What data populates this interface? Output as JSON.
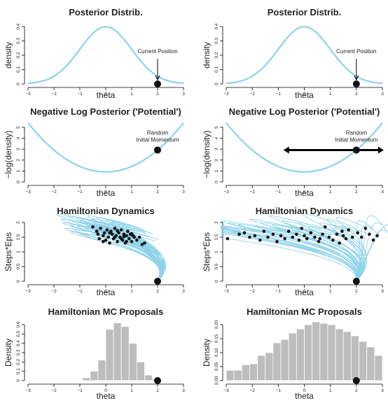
{
  "figure": {
    "colors": {
      "curve": "#8dd3ea",
      "bar": "#bdbdbd",
      "point": "#111111",
      "axis": "#000000"
    }
  },
  "chart_data": [
    {
      "type": "line",
      "panel": "posterior-left",
      "title": "Posterior Distrib.",
      "xlabel": "theta",
      "ylabel": "density",
      "xlim": [
        -3,
        3
      ],
      "ylim": [
        0,
        0.4
      ],
      "xticks": [
        -3,
        -2,
        -1,
        0,
        1,
        2,
        3
      ],
      "yticks": [
        0,
        0.1,
        0.2,
        0.3,
        0.4
      ],
      "curve": "normal(0,1) density",
      "current_position": 2,
      "annotation": "Current Position"
    },
    {
      "type": "line",
      "panel": "posterior-right",
      "title": "Posterior Distrib.",
      "xlabel": "theta",
      "ylabel": "density",
      "xlim": [
        -3,
        3
      ],
      "ylim": [
        0,
        0.4
      ],
      "xticks": [
        -3,
        -2,
        -1,
        0,
        1,
        2,
        3
      ],
      "yticks": [
        0,
        0.1,
        0.2,
        0.3,
        0.4
      ],
      "curve": "normal(0,1) density",
      "current_position": 2,
      "annotation": "Current Position"
    },
    {
      "type": "line",
      "panel": "potential-left",
      "title": "Negative Log Posterior ('Potential')",
      "xlabel": "theta",
      "ylabel": "−log(density)",
      "xlim": [
        -3,
        3
      ],
      "ylim": [
        0,
        5
      ],
      "xticks": [
        -3,
        -2,
        -1,
        0,
        1,
        2,
        3
      ],
      "yticks": [
        0,
        1,
        2,
        3,
        4,
        5
      ],
      "curve": "0.919 + theta^2/2",
      "current_position": 2,
      "annotation": [
        "Random",
        "Initial Momentum"
      ],
      "momentum_range": [
        1.85,
        2.15
      ]
    },
    {
      "type": "line",
      "panel": "potential-right",
      "title": "Negative Log Posterior ('Potential')",
      "xlabel": "theta",
      "ylabel": "−log(density)",
      "xlim": [
        -3,
        3
      ],
      "ylim": [
        0,
        5
      ],
      "xticks": [
        -3,
        -2,
        -1,
        0,
        1,
        2,
        3
      ],
      "yticks": [
        0,
        1,
        2,
        3,
        4,
        5
      ],
      "curve": "0.919 + theta^2/2",
      "current_position": 2,
      "annotation": [
        "Random",
        "Initial Momentum"
      ],
      "momentum_range": [
        -0.8,
        3.05
      ]
    },
    {
      "type": "scatter",
      "panel": "dynamics-left",
      "title": "Hamiltonian Dynamics",
      "xlabel": "theta",
      "ylabel": "Steps*Eps",
      "xlim": [
        -3,
        3
      ],
      "ylim": [
        0,
        2
      ],
      "xticks": [
        -3,
        -2,
        -1,
        0,
        1,
        2,
        3
      ],
      "yticks": [
        0,
        0.5,
        1,
        1.5,
        2
      ],
      "start": 2,
      "endpoints": [
        [
          -0.5,
          1.85
        ],
        [
          -0.35,
          1.7
        ],
        [
          -0.3,
          1.6
        ],
        [
          -0.25,
          1.45
        ],
        [
          -0.2,
          1.8
        ],
        [
          -0.1,
          1.55
        ],
        [
          -0.05,
          1.65
        ],
        [
          0,
          1.4
        ],
        [
          0.05,
          1.75
        ],
        [
          0.1,
          1.5
        ],
        [
          0.15,
          1.3
        ],
        [
          0.2,
          1.7
        ],
        [
          0.25,
          1.6
        ],
        [
          0.3,
          1.45
        ],
        [
          0.35,
          1.8
        ],
        [
          0.4,
          1.55
        ],
        [
          0.45,
          1.35
        ],
        [
          0.5,
          1.65
        ],
        [
          0.55,
          1.5
        ],
        [
          0.6,
          1.75
        ],
        [
          0.65,
          1.4
        ],
        [
          0.7,
          1.6
        ],
        [
          0.75,
          1.3
        ],
        [
          0.8,
          1.55
        ],
        [
          0.85,
          1.7
        ],
        [
          0.9,
          1.45
        ],
        [
          0.95,
          1.6
        ],
        [
          1.0,
          1.35
        ],
        [
          1.05,
          1.55
        ],
        [
          1.1,
          1.5
        ],
        [
          1.2,
          1.4
        ],
        [
          1.3,
          1.5
        ],
        [
          1.4,
          1.25
        ],
        [
          1.5,
          1.3
        ],
        [
          0.15,
          1.65
        ],
        [
          0.35,
          1.5
        ],
        [
          0.6,
          1.45
        ],
        [
          0.8,
          1.35
        ],
        [
          -0.1,
          1.35
        ],
        [
          0.45,
          1.72
        ],
        [
          0.7,
          1.52
        ],
        [
          1.0,
          1.62
        ]
      ]
    },
    {
      "type": "scatter",
      "panel": "dynamics-right",
      "title": "Hamiltonian Dynamics",
      "xlabel": "theta",
      "ylabel": "Steps*Eps",
      "xlim": [
        -3,
        3
      ],
      "ylim": [
        0,
        2
      ],
      "xticks": [
        -3,
        -2,
        -1,
        0,
        1,
        2,
        3
      ],
      "yticks": [
        0,
        0.5,
        1,
        1.5,
        2
      ],
      "start": 2,
      "endpoints": [
        [
          -2.95,
          1.45
        ],
        [
          -2.5,
          1.6
        ],
        [
          -2.3,
          1.65
        ],
        [
          -2.1,
          1.5
        ],
        [
          -1.9,
          1.55
        ],
        [
          -1.7,
          1.4
        ],
        [
          -1.55,
          1.7
        ],
        [
          -1.4,
          1.5
        ],
        [
          -1.2,
          1.6
        ],
        [
          -1.05,
          1.35
        ],
        [
          -0.9,
          1.55
        ],
        [
          -0.75,
          1.45
        ],
        [
          -0.6,
          1.7
        ],
        [
          -0.45,
          1.5
        ],
        [
          -0.3,
          1.6
        ],
        [
          -0.2,
          1.4
        ],
        [
          -0.1,
          1.8
        ],
        [
          0,
          1.55
        ],
        [
          0.1,
          1.45
        ],
        [
          0.25,
          1.65
        ],
        [
          0.4,
          1.5
        ],
        [
          0.55,
          1.35
        ],
        [
          0.7,
          1.6
        ],
        [
          0.8,
          1.85
        ],
        [
          0.95,
          1.5
        ],
        [
          1.1,
          1.4
        ],
        [
          1.25,
          1.6
        ],
        [
          1.35,
          1.3
        ],
        [
          1.5,
          1.55
        ],
        [
          1.6,
          1.45
        ],
        [
          1.7,
          1.75
        ],
        [
          1.85,
          1.5
        ],
        [
          2.05,
          1.65
        ],
        [
          2.2,
          1.5
        ],
        [
          2.35,
          1.8
        ],
        [
          2.5,
          1.6
        ],
        [
          2.65,
          1.4
        ],
        [
          2.8,
          1.55
        ],
        [
          1.45,
          1.7
        ],
        [
          0.6,
          1.45
        ]
      ]
    },
    {
      "type": "bar",
      "panel": "proposals-left",
      "title": "Hamiltonian MC Proposals",
      "xlabel": "theta",
      "ylabel": "Density",
      "xlim": [
        -3,
        3
      ],
      "ylim": [
        0,
        0.6
      ],
      "xticks": [
        -3,
        -2,
        -1,
        0,
        1,
        2,
        3
      ],
      "yticks": [
        0,
        0.1,
        0.2,
        0.3,
        0.4,
        0.5,
        0.6
      ],
      "bin_edges": [
        -1.2,
        -0.9,
        -0.6,
        -0.3,
        0,
        0.3,
        0.6,
        0.9,
        1.2,
        1.5,
        1.8,
        2.1
      ],
      "values": [
        0.005,
        0.03,
        0.1,
        0.22,
        0.55,
        0.62,
        0.58,
        0.4,
        0.2,
        0.06,
        0.02
      ],
      "current_position": 2
    },
    {
      "type": "bar",
      "panel": "proposals-right",
      "title": "Hamiltonian MC Proposals",
      "xlabel": "theta",
      "ylabel": "Density",
      "xlim": [
        -3,
        3
      ],
      "ylim": [
        0,
        0.2
      ],
      "xticks": [
        -3,
        -2,
        -1,
        0,
        1,
        2,
        3
      ],
      "yticks": [
        0,
        0.05,
        0.1,
        0.15,
        0.2
      ],
      "yticklabels": [
        "0.00",
        "0.05",
        "0.10",
        "0.15",
        "0.20"
      ],
      "bin_edges": [
        -3.0,
        -2.7,
        -2.4,
        -2.1,
        -1.8,
        -1.5,
        -1.2,
        -0.9,
        -0.6,
        -0.3,
        0,
        0.3,
        0.6,
        0.9,
        1.2,
        1.5,
        1.8,
        2.1,
        2.4,
        2.7,
        3.0
      ],
      "values": [
        0.037,
        0.037,
        0.057,
        0.06,
        0.09,
        0.1,
        0.135,
        0.147,
        0.17,
        0.185,
        0.2,
        0.21,
        0.205,
        0.2,
        0.185,
        0.175,
        0.16,
        0.14,
        0.12,
        0.09
      ],
      "current_position": 2
    }
  ]
}
